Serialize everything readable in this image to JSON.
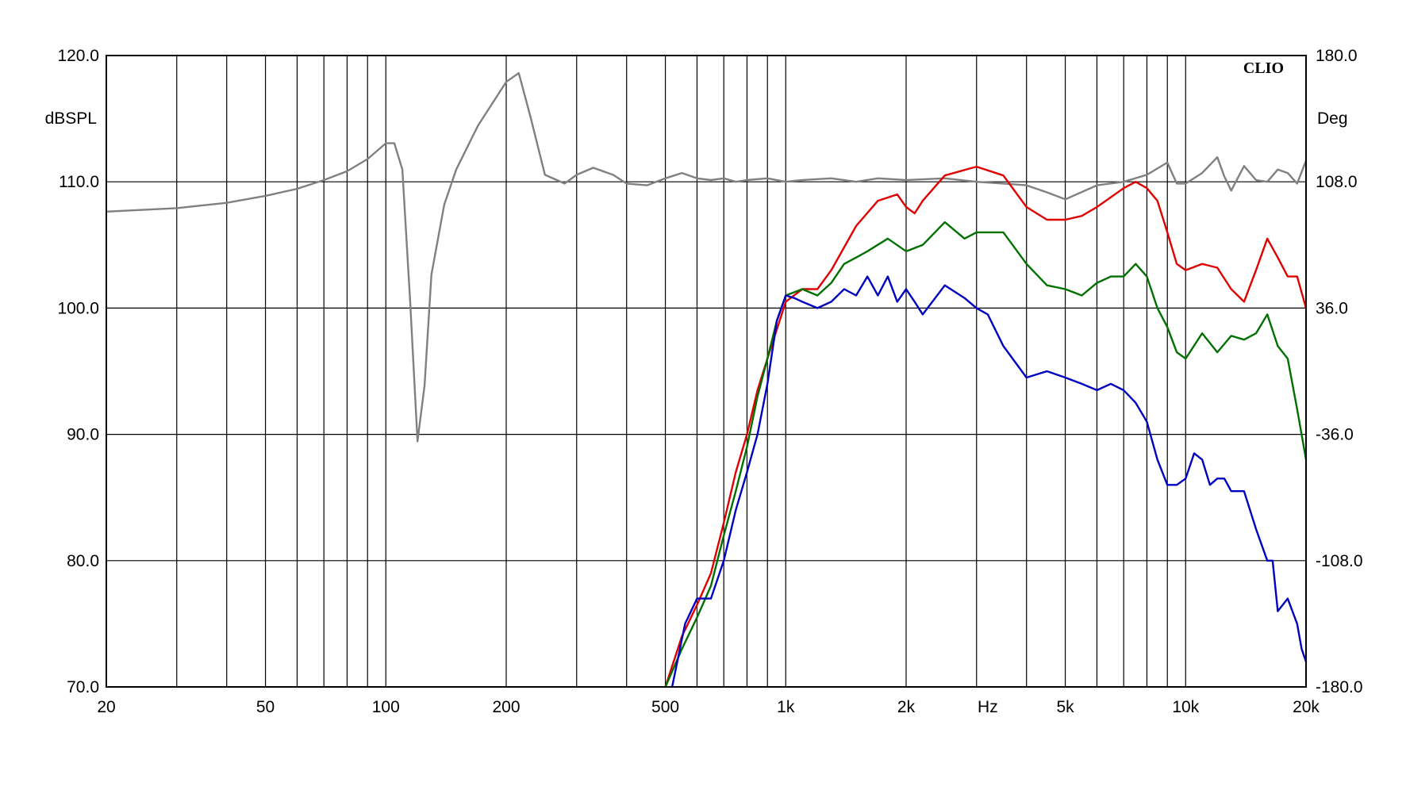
{
  "chart_data": {
    "type": "line",
    "brand": "CLIO",
    "xlabel": "Hz",
    "ylabel_left": "dBSPL",
    "ylabel_right": "Deg",
    "xscale": "log",
    "xlim": [
      20,
      20000
    ],
    "ylim": [
      70,
      120
    ],
    "ylim_right": [
      -180,
      180
    ],
    "grid": true,
    "x_ticks": [
      20,
      50,
      100,
      200,
      500,
      1000,
      2000,
      5000,
      10000,
      20000
    ],
    "x_tick_labels": [
      "20",
      "50",
      "100",
      "200",
      "500",
      "1k",
      "2k",
      "5k",
      "10k",
      "20k"
    ],
    "y_ticks": [
      70,
      80,
      90,
      100,
      110,
      120
    ],
    "y_tick_labels": [
      "70.0",
      "80.0",
      "90.0",
      "100.0",
      "110.0",
      "120.0"
    ],
    "y_ticks_right": [
      -180,
      -108,
      -36,
      36,
      108,
      180
    ],
    "y_tick_labels_right": [
      "-180.0",
      "-108.0",
      "-36.0",
      "36.0",
      "108.0",
      "180.0"
    ],
    "series": [
      {
        "color": "#808080",
        "axis": "right",
        "x": [
          20,
          30,
          40,
          50,
          60,
          70,
          80,
          90,
          100,
          105,
          110,
          115,
          120,
          125,
          130,
          140,
          150,
          170,
          200,
          215,
          230,
          250,
          280,
          300,
          330,
          370,
          400,
          450,
          500,
          550,
          600,
          650,
          700,
          750,
          800,
          900,
          1000,
          1100,
          1300,
          1500,
          1700,
          2000,
          2500,
          3000,
          3500,
          4000,
          4500,
          5000,
          6000,
          7000,
          8000,
          9000,
          9500,
          10000,
          11000,
          12000,
          12500,
          13000,
          14000,
          15000,
          16000,
          17000,
          18000,
          19000,
          20000
        ],
        "y": [
          91,
          93,
          96,
          100,
          104,
          109,
          114,
          121,
          130,
          130,
          115,
          40,
          -40,
          -8,
          55,
          95,
          115,
          140,
          165,
          170,
          145,
          112,
          107,
          112,
          116,
          112,
          107,
          106,
          110,
          113,
          110,
          109,
          110,
          108,
          109,
          110,
          108,
          109,
          110,
          108,
          110,
          109,
          110,
          108,
          107,
          106,
          102,
          98,
          106,
          108,
          112,
          119,
          107,
          107,
          113,
          122,
          111,
          103,
          117,
          109,
          108,
          115,
          113,
          107,
          120
        ]
      },
      {
        "color": "#e00000",
        "axis": "left",
        "x": [
          500,
          550,
          600,
          650,
          700,
          750,
          800,
          850,
          900,
          1000,
          1100,
          1200,
          1300,
          1500,
          1700,
          1900,
          2000,
          2100,
          2200,
          2500,
          3000,
          3500,
          4000,
          4500,
          5000,
          5500,
          6000,
          7000,
          7500,
          8000,
          8500,
          9000,
          9500,
          10000,
          11000,
          12000,
          13000,
          14000,
          15000,
          16000,
          17000,
          18000,
          19000,
          20000
        ],
        "y": [
          70,
          74,
          76.5,
          79,
          83,
          87,
          90,
          93.5,
          96,
          100.5,
          101.5,
          101.5,
          103,
          106.5,
          108.5,
          109,
          108,
          107.5,
          108.5,
          110.5,
          111.2,
          110.5,
          108,
          107,
          107,
          107.3,
          108,
          109.5,
          110,
          109.5,
          108.5,
          106,
          103.5,
          103,
          103.5,
          103.2,
          101.5,
          100.5,
          103,
          105.5,
          104,
          102.5,
          102.5,
          100
        ]
      },
      {
        "color": "#007000",
        "axis": "left",
        "x": [
          500,
          550,
          600,
          650,
          700,
          750,
          800,
          850,
          900,
          950,
          1000,
          1100,
          1200,
          1300,
          1400,
          1500,
          1600,
          1800,
          2000,
          2200,
          2500,
          2800,
          3000,
          3500,
          4000,
          4500,
          5000,
          5500,
          6000,
          6500,
          7000,
          7500,
          8000,
          8500,
          9000,
          9500,
          10000,
          11000,
          12000,
          13000,
          14000,
          15000,
          16000,
          17000,
          18000,
          19000,
          20000
        ],
        "y": [
          70,
          73,
          75.5,
          78,
          82,
          85.5,
          89,
          93,
          96,
          99,
          101,
          101.5,
          101,
          102,
          103.5,
          104,
          104.5,
          105.5,
          104.5,
          105,
          106.8,
          105.5,
          106,
          106,
          103.5,
          101.8,
          101.5,
          101,
          102,
          102.5,
          102.5,
          103.5,
          102.5,
          100,
          98.5,
          96.5,
          96,
          98,
          96.5,
          97.8,
          97.5,
          98,
          99.5,
          97,
          96,
          92,
          88
        ]
      },
      {
        "color": "#0000c0",
        "axis": "left",
        "x": [
          520,
          560,
          600,
          650,
          700,
          750,
          800,
          850,
          900,
          950,
          1000,
          1050,
          1100,
          1200,
          1300,
          1400,
          1500,
          1600,
          1700,
          1800,
          1900,
          2000,
          2100,
          2200,
          2500,
          2800,
          3000,
          3200,
          3500,
          4000,
          4500,
          5000,
          5500,
          6000,
          6500,
          7000,
          7500,
          8000,
          8500,
          9000,
          9500,
          10000,
          10500,
          11000,
          11500,
          12000,
          12500,
          13000,
          14000,
          15000,
          16000,
          16500,
          17000,
          18000,
          19000,
          19500,
          20000
        ],
        "y": [
          70,
          75,
          77,
          77,
          80,
          84,
          87,
          90,
          94,
          99,
          101,
          100.8,
          100.5,
          100,
          100.5,
          101.5,
          101,
          102.5,
          101,
          102.5,
          100.5,
          101.5,
          100.5,
          99.5,
          101.8,
          100.8,
          100,
          99.5,
          97,
          94.5,
          95,
          94.5,
          94,
          93.5,
          94,
          93.5,
          92.5,
          91,
          88,
          86,
          86,
          86.5,
          88.5,
          88,
          86,
          86.5,
          86.5,
          85.5,
          85.5,
          82.5,
          80,
          80,
          76,
          77,
          75,
          73,
          72
        ]
      }
    ]
  }
}
